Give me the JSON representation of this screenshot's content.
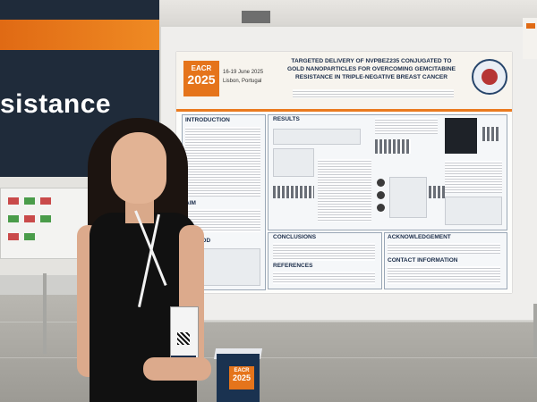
{
  "banner": {
    "text": "sistance"
  },
  "poster": {
    "logo": {
      "line1": "EACR",
      "line2": "2025"
    },
    "conference_dates": "16-19 June 2025",
    "conference_city": "Lisbon, Portugal",
    "title": "TARGETED DELIVERY OF NVPBEZ235 CONJUGATED TO GOLD NANOPARTICLES FOR OVERCOMING GEMCITABINE RESISTANCE IN TRIPLE-NEGATIVE BREAST CANCER",
    "sections": {
      "introduction": "INTRODUCTION",
      "results": "RESULTS",
      "aim": "AIM",
      "method": "METHOD",
      "conclusions": "CONCLUSIONS",
      "references": "REFERENCES",
      "acknowledgement": "ACKNOWLEDGEMENT",
      "contact": "CONTACT INFORMATION"
    }
  },
  "cube": {
    "line1": "EACR",
    "line2": "2025"
  },
  "colors": {
    "accent_orange": "#e5741b",
    "navy": "#1b2d4a",
    "banner": "#1f2b3a"
  }
}
